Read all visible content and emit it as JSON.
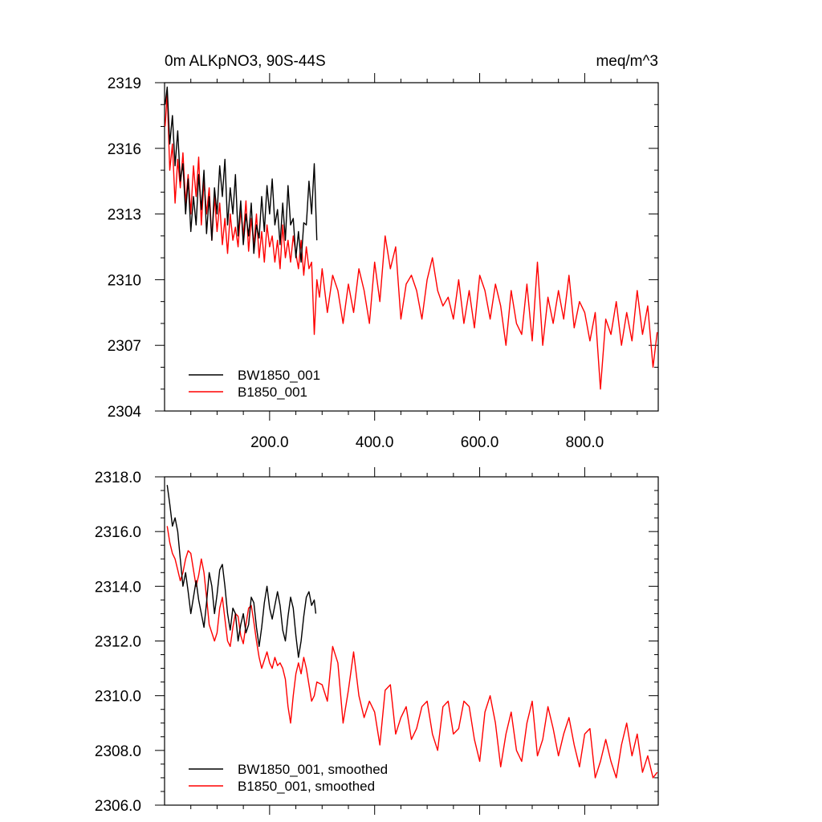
{
  "colors": {
    "BW1850_001": "#000000",
    "B1850_001": "#ff0000"
  },
  "chart_data": [
    {
      "type": "line",
      "title_left": "0m ALKpNO3, 90S-44S",
      "title_right": "meq/m^3",
      "xlabel": "",
      "ylabel": "",
      "xlim": [
        0,
        940
      ],
      "ylim": [
        2304,
        2319
      ],
      "yticks": [
        2304,
        2307,
        2310,
        2313,
        2316,
        2319
      ],
      "ytick_labels": [
        "2304",
        "2307",
        "2310",
        "2313",
        "2316",
        "2319"
      ],
      "xticks": [
        200,
        400,
        600,
        800
      ],
      "xtick_labels": [
        "200.0",
        "400.0",
        "600.0",
        "800.0"
      ],
      "legend_position": "bottom-left",
      "series": [
        {
          "name": "BW1850_001",
          "color": "#000000",
          "x": [
            1,
            5,
            10,
            15,
            20,
            25,
            30,
            35,
            40,
            45,
            50,
            55,
            60,
            65,
            70,
            75,
            80,
            85,
            90,
            95,
            100,
            105,
            110,
            115,
            120,
            125,
            130,
            135,
            140,
            145,
            150,
            155,
            160,
            165,
            170,
            175,
            180,
            185,
            190,
            195,
            200,
            205,
            210,
            215,
            220,
            225,
            230,
            235,
            240,
            245,
            250,
            255,
            260,
            265,
            270,
            275,
            280,
            285,
            290
          ],
          "values": [
            2318.0,
            2318.8,
            2316.2,
            2317.5,
            2315.2,
            2316.8,
            2314.5,
            2315.3,
            2313.0,
            2314.6,
            2312.2,
            2313.8,
            2312.5,
            2314.8,
            2313.2,
            2315.0,
            2312.1,
            2313.8,
            2311.8,
            2314.2,
            2313.0,
            2315.2,
            2313.8,
            2315.5,
            2312.5,
            2314.2,
            2313.0,
            2314.8,
            2312.0,
            2313.6,
            2311.6,
            2313.0,
            2312.0,
            2313.5,
            2311.2,
            2312.5,
            2311.9,
            2313.8,
            2312.2,
            2314.3,
            2313.0,
            2314.6,
            2312.5,
            2313.2,
            2311.6,
            2313.5,
            2311.8,
            2314.3,
            2312.5,
            2312.8,
            2311.0,
            2312.2,
            2310.8,
            2312.6,
            2312.5,
            2314.5,
            2313.0,
            2315.3,
            2311.8
          ]
        },
        {
          "name": "B1850_001",
          "color": "#ff0000",
          "x": [
            1,
            5,
            10,
            15,
            20,
            25,
            30,
            35,
            40,
            45,
            50,
            55,
            60,
            65,
            70,
            75,
            80,
            85,
            90,
            95,
            100,
            105,
            110,
            115,
            120,
            125,
            130,
            135,
            140,
            145,
            150,
            155,
            160,
            165,
            170,
            175,
            180,
            185,
            190,
            195,
            200,
            205,
            210,
            215,
            220,
            225,
            230,
            235,
            240,
            245,
            250,
            255,
            260,
            265,
            270,
            275,
            280,
            285,
            290,
            295,
            300,
            310,
            320,
            330,
            340,
            350,
            360,
            370,
            380,
            390,
            400,
            410,
            420,
            430,
            440,
            450,
            460,
            470,
            480,
            490,
            500,
            510,
            520,
            530,
            540,
            550,
            560,
            570,
            580,
            590,
            600,
            610,
            620,
            630,
            640,
            650,
            660,
            670,
            680,
            690,
            700,
            710,
            720,
            730,
            740,
            750,
            760,
            770,
            780,
            790,
            800,
            810,
            820,
            830,
            840,
            850,
            860,
            870,
            880,
            890,
            900,
            910,
            920,
            930,
            938
          ],
          "values": [
            2317.0,
            2318.5,
            2315.0,
            2316.2,
            2313.5,
            2315.5,
            2314.2,
            2315.8,
            2313.5,
            2314.8,
            2313.0,
            2315.2,
            2313.8,
            2315.6,
            2312.5,
            2314.5,
            2313.0,
            2314.2,
            2311.8,
            2313.8,
            2312.2,
            2313.5,
            2311.6,
            2312.8,
            2311.2,
            2313.0,
            2311.8,
            2312.4,
            2311.5,
            2313.2,
            2312.0,
            2313.6,
            2311.3,
            2312.8,
            2311.6,
            2313.0,
            2311.0,
            2312.2,
            2310.8,
            2312.5,
            2311.5,
            2312.0,
            2310.8,
            2311.8,
            2310.5,
            2312.5,
            2311.0,
            2311.8,
            2310.8,
            2312.0,
            2311.2,
            2310.5,
            2311.8,
            2310.2,
            2311.5,
            2310.5,
            2310.8,
            2307.5,
            2310.0,
            2309.2,
            2310.5,
            2308.5,
            2310.2,
            2309.5,
            2308.0,
            2309.8,
            2308.5,
            2310.5,
            2309.5,
            2308.0,
            2310.8,
            2309.0,
            2312.0,
            2310.5,
            2311.5,
            2308.2,
            2309.8,
            2310.2,
            2309.5,
            2308.2,
            2310.0,
            2311.0,
            2309.5,
            2308.8,
            2309.2,
            2308.2,
            2310.0,
            2308.0,
            2309.5,
            2307.8,
            2310.2,
            2309.5,
            2308.2,
            2309.8,
            2308.8,
            2307.0,
            2309.5,
            2308.0,
            2307.5,
            2309.8,
            2307.2,
            2310.8,
            2307.0,
            2309.2,
            2308.0,
            2309.5,
            2308.2,
            2310.2,
            2307.8,
            2309.0,
            2308.5,
            2307.2,
            2308.5,
            2305.0,
            2308.2,
            2307.5,
            2309.0,
            2307.0,
            2308.5,
            2307.2,
            2309.5,
            2307.5,
            2308.8,
            2306.0,
            2307.6
          ]
        }
      ]
    },
    {
      "type": "line",
      "title_left": "",
      "title_right": "",
      "xlabel": "",
      "ylabel": "",
      "xlim": [
        0,
        940
      ],
      "ylim": [
        2306,
        2318
      ],
      "yticks": [
        2306,
        2308,
        2310,
        2312,
        2314,
        2316,
        2318
      ],
      "ytick_labels": [
        "2306.0",
        "2308.0",
        "2310.0",
        "2312.0",
        "2314.0",
        "2316.0",
        "2318.0"
      ],
      "xticks": [
        200,
        400,
        600,
        800
      ],
      "xtick_labels": [],
      "legend_position": "bottom-left",
      "series": [
        {
          "name": "BW1850_001, smoothed",
          "color": "#000000",
          "x": [
            5,
            10,
            15,
            20,
            25,
            30,
            35,
            40,
            45,
            50,
            55,
            60,
            65,
            70,
            75,
            80,
            85,
            90,
            95,
            100,
            105,
            110,
            115,
            120,
            125,
            130,
            135,
            140,
            145,
            150,
            155,
            160,
            165,
            170,
            175,
            180,
            185,
            190,
            195,
            200,
            205,
            210,
            215,
            220,
            225,
            230,
            235,
            240,
            245,
            250,
            255,
            260,
            265,
            270,
            275,
            280,
            285,
            288
          ],
          "values": [
            2317.7,
            2317.0,
            2316.2,
            2316.5,
            2316.0,
            2315.0,
            2314.0,
            2314.5,
            2313.8,
            2313.0,
            2313.6,
            2314.2,
            2313.5,
            2313.0,
            2312.5,
            2313.4,
            2314.5,
            2314.0,
            2313.0,
            2313.7,
            2314.6,
            2314.8,
            2314.0,
            2313.0,
            2312.4,
            2313.2,
            2313.0,
            2312.0,
            2312.6,
            2313.0,
            2312.3,
            2312.6,
            2313.6,
            2313.4,
            2312.5,
            2311.8,
            2312.5,
            2313.4,
            2314.0,
            2313.2,
            2312.8,
            2313.3,
            2313.8,
            2313.3,
            2312.4,
            2312.0,
            2312.9,
            2313.6,
            2313.2,
            2312.2,
            2311.4,
            2312.0,
            2312.9,
            2313.6,
            2313.8,
            2313.3,
            2313.5,
            2313.0
          ]
        },
        {
          "name": "B1850_001, smoothed",
          "color": "#ff0000",
          "x": [
            5,
            10,
            15,
            20,
            25,
            30,
            35,
            40,
            45,
            50,
            55,
            60,
            65,
            70,
            75,
            80,
            85,
            90,
            95,
            100,
            105,
            110,
            115,
            120,
            125,
            130,
            135,
            140,
            145,
            150,
            155,
            160,
            165,
            170,
            175,
            180,
            185,
            190,
            195,
            200,
            205,
            210,
            215,
            220,
            225,
            230,
            235,
            240,
            245,
            250,
            255,
            260,
            265,
            270,
            275,
            280,
            285,
            290,
            300,
            310,
            320,
            330,
            340,
            350,
            360,
            370,
            380,
            390,
            400,
            410,
            420,
            430,
            440,
            450,
            460,
            470,
            480,
            490,
            500,
            510,
            520,
            530,
            540,
            550,
            560,
            570,
            580,
            590,
            600,
            610,
            620,
            630,
            640,
            650,
            660,
            670,
            680,
            690,
            700,
            710,
            720,
            730,
            740,
            750,
            760,
            770,
            780,
            790,
            800,
            810,
            820,
            830,
            840,
            850,
            860,
            870,
            880,
            890,
            900,
            910,
            920,
            930,
            938
          ],
          "values": [
            2316.2,
            2315.6,
            2315.2,
            2315.0,
            2314.6,
            2314.2,
            2314.5,
            2315.0,
            2315.3,
            2315.2,
            2314.6,
            2314.0,
            2314.4,
            2315.0,
            2314.5,
            2313.6,
            2312.6,
            2312.3,
            2312.0,
            2312.3,
            2313.2,
            2313.6,
            2312.8,
            2312.0,
            2311.8,
            2312.5,
            2313.0,
            2312.9,
            2312.2,
            2311.9,
            2312.6,
            2313.2,
            2313.3,
            2312.7,
            2312.0,
            2311.4,
            2311.0,
            2311.3,
            2311.6,
            2311.2,
            2311.0,
            2311.4,
            2311.1,
            2311.2,
            2311.0,
            2310.6,
            2309.6,
            2309.0,
            2310.0,
            2310.8,
            2311.2,
            2310.8,
            2311.4,
            2311.0,
            2310.4,
            2309.8,
            2310.0,
            2310.5,
            2310.4,
            2309.8,
            2311.8,
            2311.2,
            2309.0,
            2310.2,
            2311.6,
            2310.0,
            2309.2,
            2309.8,
            2309.4,
            2308.2,
            2310.2,
            2310.4,
            2308.6,
            2309.2,
            2309.6,
            2308.4,
            2308.8,
            2309.6,
            2309.8,
            2308.6,
            2308.0,
            2309.6,
            2309.8,
            2308.6,
            2308.8,
            2309.8,
            2309.6,
            2308.4,
            2307.6,
            2309.4,
            2310.0,
            2309.0,
            2307.4,
            2308.6,
            2309.4,
            2308.0,
            2307.6,
            2309.0,
            2309.8,
            2307.8,
            2308.4,
            2309.6,
            2308.8,
            2307.8,
            2308.6,
            2309.2,
            2308.2,
            2307.4,
            2308.6,
            2308.8,
            2307.0,
            2307.6,
            2308.4,
            2307.6,
            2307.0,
            2308.2,
            2309.0,
            2307.8,
            2308.6,
            2307.2,
            2307.8,
            2307.0,
            2307.2
          ]
        }
      ]
    }
  ]
}
